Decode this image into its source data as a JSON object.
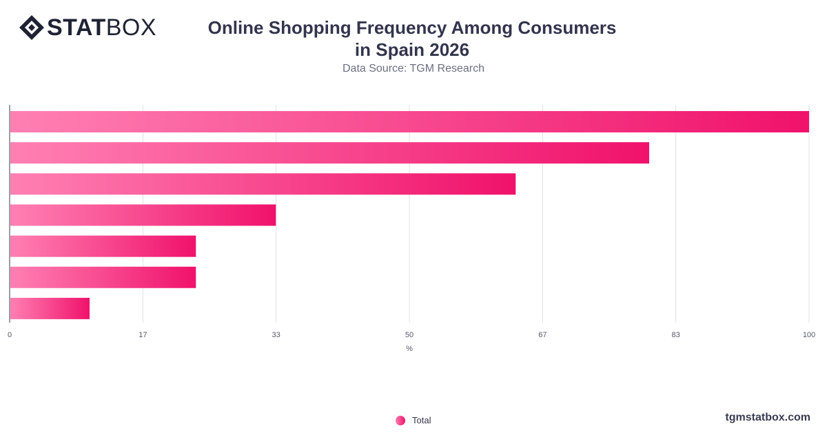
{
  "logo": {
    "brand_bold": "STAT",
    "brand_light": "BOX"
  },
  "title": "Online Shopping Frequency Among Consumers in Spain 2026",
  "subtitle": "Data Source: TGM Research",
  "footer": {
    "brand_url": "tgmstatbox.com"
  },
  "colors": {
    "bar_start": "#ff80b3",
    "bar_end": "#f0126b",
    "grid": "#e1e1e6",
    "axis": "#3a3c52"
  },
  "chart_data": {
    "type": "bar",
    "orientation": "horizontal",
    "xlabel": "%",
    "xlim": [
      0,
      100
    ],
    "xticks": [
      "0",
      "17",
      "33",
      "50",
      "67",
      "83",
      "100"
    ],
    "grid": true,
    "legend": "bottom-center",
    "series": [
      {
        "name": "Total",
        "values": [
          100,
          80,
          63.3,
          33.3,
          23.3,
          23.3,
          10
        ]
      }
    ]
  }
}
